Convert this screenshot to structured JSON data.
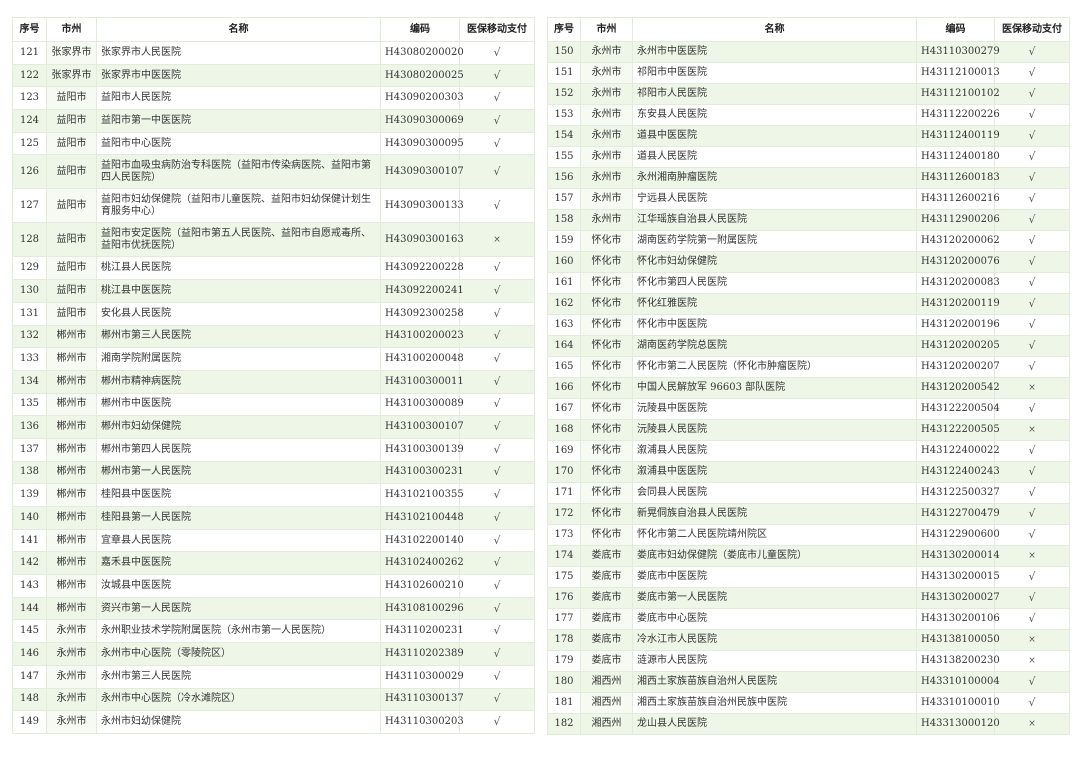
{
  "headers": [
    "序号",
    "市州",
    "名称",
    "编码",
    "医保移动支付"
  ],
  "colors": {
    "border": "#9ccb86",
    "row_alt": "#eef6e8"
  },
  "tables": [
    {
      "rows": [
        [
          "121",
          "张家界市",
          "张家界市人民医院",
          "H43080200020",
          "√"
        ],
        [
          "122",
          "张家界市",
          "张家界市中医医院",
          "H43080200025",
          "√"
        ],
        [
          "123",
          "益阳市",
          "益阳市人民医院",
          "H43090200303",
          "√"
        ],
        [
          "124",
          "益阳市",
          "益阳市第一中医医院",
          "H43090300069",
          "√"
        ],
        [
          "125",
          "益阳市",
          "益阳市中心医院",
          "H43090300095",
          "√"
        ],
        [
          "126",
          "益阳市",
          "益阳市血吸虫病防治专科医院（益阳市传染病医院、益阳市第四人民医院）",
          "H43090300107",
          "√"
        ],
        [
          "127",
          "益阳市",
          "益阳市妇幼保健院（益阳市儿童医院、益阳市妇幼保健计划生育服务中心）",
          "H43090300133",
          "√"
        ],
        [
          "128",
          "益阳市",
          "益阳市安定医院（益阳市第五人民医院、益阳市自愿戒毒所、益阳市优抚医院）",
          "H43090300163",
          "×"
        ],
        [
          "129",
          "益阳市",
          "桃江县人民医院",
          "H43092200228",
          "√"
        ],
        [
          "130",
          "益阳市",
          "桃江县中医医院",
          "H43092200241",
          "√"
        ],
        [
          "131",
          "益阳市",
          "安化县人民医院",
          "H43092300258",
          "√"
        ],
        [
          "132",
          "郴州市",
          "郴州市第三人民医院",
          "H43100200023",
          "√"
        ],
        [
          "133",
          "郴州市",
          "湘南学院附属医院",
          "H43100200048",
          "√"
        ],
        [
          "134",
          "郴州市",
          "郴州市精神病医院",
          "H43100300011",
          "√"
        ],
        [
          "135",
          "郴州市",
          "郴州市中医医院",
          "H43100300089",
          "√"
        ],
        [
          "136",
          "郴州市",
          "郴州市妇幼保健院",
          "H43100300107",
          "√"
        ],
        [
          "137",
          "郴州市",
          "郴州市第四人民医院",
          "H43100300139",
          "√"
        ],
        [
          "138",
          "郴州市",
          "郴州市第一人民医院",
          "H43100300231",
          "√"
        ],
        [
          "139",
          "郴州市",
          "桂阳县中医医院",
          "H43102100355",
          "√"
        ],
        [
          "140",
          "郴州市",
          "桂阳县第一人民医院",
          "H43102100448",
          "√"
        ],
        [
          "141",
          "郴州市",
          "宜章县人民医院",
          "H43102200140",
          "√"
        ],
        [
          "142",
          "郴州市",
          "嘉禾县中医医院",
          "H43102400262",
          "√"
        ],
        [
          "143",
          "郴州市",
          "汝城县中医医院",
          "H43102600210",
          "√"
        ],
        [
          "144",
          "郴州市",
          "资兴市第一人民医院",
          "H43108100296",
          "√"
        ],
        [
          "145",
          "永州市",
          "永州职业技术学院附属医院（永州市第一人民医院）",
          "H43110200231",
          "√"
        ],
        [
          "146",
          "永州市",
          "永州市中心医院（零陵院区）",
          "H43110202389",
          "√"
        ],
        [
          "147",
          "永州市",
          "永州市第三人民医院",
          "H43110300029",
          "√"
        ],
        [
          "148",
          "永州市",
          "永州市中心医院（冷水滩院区）",
          "H43110300137",
          "√"
        ],
        [
          "149",
          "永州市",
          "永州市妇幼保健院",
          "H43110300203",
          "√"
        ]
      ]
    },
    {
      "rows": [
        [
          "150",
          "永州市",
          "永州市中医医院",
          "H43110300279",
          "√"
        ],
        [
          "151",
          "永州市",
          "祁阳市中医医院",
          "H43112100013",
          "√"
        ],
        [
          "152",
          "永州市",
          "祁阳市人民医院",
          "H43112100102",
          "√"
        ],
        [
          "153",
          "永州市",
          "东安县人民医院",
          "H43112200226",
          "√"
        ],
        [
          "154",
          "永州市",
          "道县中医医院",
          "H43112400119",
          "√"
        ],
        [
          "155",
          "永州市",
          "道县人民医院",
          "H43112400180",
          "√"
        ],
        [
          "156",
          "永州市",
          "永州湘南肿瘤医院",
          "H43112600183",
          "√"
        ],
        [
          "157",
          "永州市",
          "宁远县人民医院",
          "H43112600216",
          "√"
        ],
        [
          "158",
          "永州市",
          "江华瑶族自治县人民医院",
          "H43112900206",
          "√"
        ],
        [
          "159",
          "怀化市",
          "湖南医药学院第一附属医院",
          "H43120200062",
          "√"
        ],
        [
          "160",
          "怀化市",
          "怀化市妇幼保健院",
          "H43120200076",
          "√"
        ],
        [
          "161",
          "怀化市",
          "怀化市第四人民医院",
          "H43120200083",
          "√"
        ],
        [
          "162",
          "怀化市",
          "怀化红雅医院",
          "H43120200119",
          "√"
        ],
        [
          "163",
          "怀化市",
          "怀化市中医医院",
          "H43120200196",
          "√"
        ],
        [
          "164",
          "怀化市",
          "湖南医药学院总医院",
          "H43120200205",
          "√"
        ],
        [
          "165",
          "怀化市",
          "怀化市第二人民医院（怀化市肿瘤医院）",
          "H43120200207",
          "√"
        ],
        [
          "166",
          "怀化市",
          "中国人民解放军 96603 部队医院",
          "H43120200542",
          "×"
        ],
        [
          "167",
          "怀化市",
          "沅陵县中医医院",
          "H43122200504",
          "√"
        ],
        [
          "168",
          "怀化市",
          "沅陵县人民医院",
          "H43122200505",
          "×"
        ],
        [
          "169",
          "怀化市",
          "溆浦县人民医院",
          "H43122400022",
          "√"
        ],
        [
          "170",
          "怀化市",
          "溆浦县中医医院",
          "H43122400243",
          "√"
        ],
        [
          "171",
          "怀化市",
          "会同县人民医院",
          "H43122500327",
          "√"
        ],
        [
          "172",
          "怀化市",
          "新晃侗族自治县人民医院",
          "H43122700479",
          "√"
        ],
        [
          "173",
          "怀化市",
          "怀化市第二人民医院靖州院区",
          "H43122900600",
          "√"
        ],
        [
          "174",
          "娄底市",
          "娄底市妇幼保健院（娄底市儿童医院）",
          "H43130200014",
          "×"
        ],
        [
          "175",
          "娄底市",
          "娄底市中医医院",
          "H43130200015",
          "√"
        ],
        [
          "176",
          "娄底市",
          "娄底市第一人民医院",
          "H43130200027",
          "√"
        ],
        [
          "177",
          "娄底市",
          "娄底市中心医院",
          "H43130200106",
          "√"
        ],
        [
          "178",
          "娄底市",
          "冷水江市人民医院",
          "H43138100050",
          "×"
        ],
        [
          "179",
          "娄底市",
          "涟源市人民医院",
          "H43138200230",
          "×"
        ],
        [
          "180",
          "湘西州",
          "湘西土家族苗族自治州人民医院",
          "H43310100004",
          "√"
        ],
        [
          "181",
          "湘西州",
          "湘西土家族苗族自治州民族中医院",
          "H43310100010",
          "√"
        ],
        [
          "182",
          "湘西州",
          "龙山县人民医院",
          "H43313000120",
          "×"
        ]
      ]
    }
  ]
}
